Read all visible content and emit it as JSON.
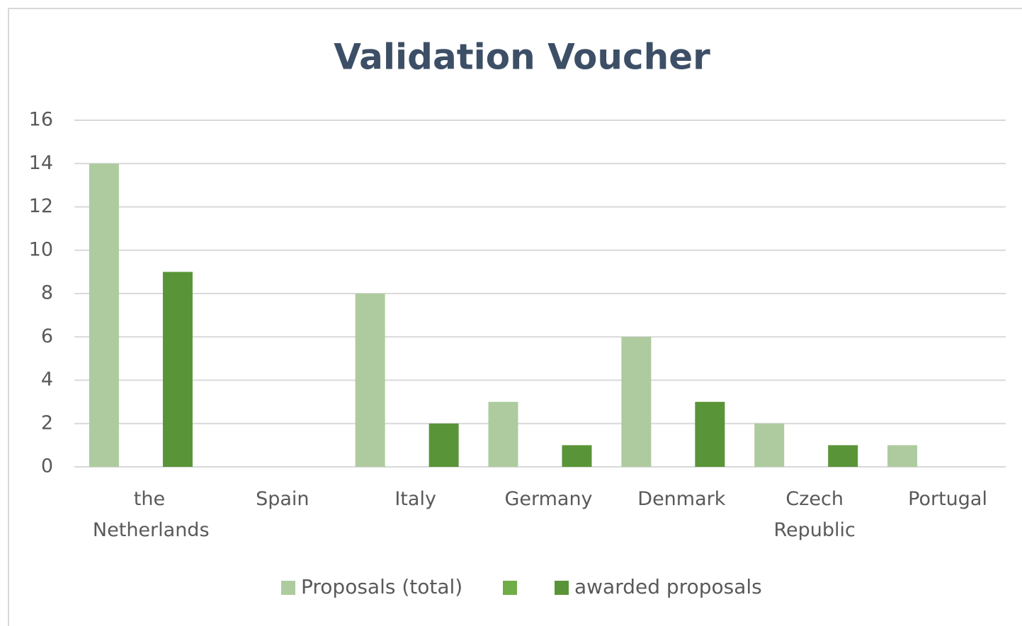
{
  "chart_data": {
    "type": "bar",
    "title": "Validation Voucher",
    "categories": [
      "the Netherlands",
      "Spain",
      "Italy",
      "Germany",
      "Denmark",
      "Czech Republic",
      "Portugal"
    ],
    "series": [
      {
        "name": "Proposals (total)",
        "color": "#aecb9f",
        "values": [
          14,
          0,
          8,
          3,
          6,
          2,
          1
        ]
      },
      {
        "color": "#70ad47",
        "values": [
          null,
          null,
          null,
          null,
          null,
          null,
          null
        ]
      },
      {
        "name": "awarded proposals",
        "color": "#5a9438",
        "values": [
          9,
          0,
          2,
          1,
          3,
          1,
          0
        ]
      }
    ],
    "ylim": [
      0,
      16
    ],
    "yticks": [
      0,
      2,
      4,
      6,
      8,
      10,
      12,
      14,
      16
    ],
    "grid": true
  }
}
